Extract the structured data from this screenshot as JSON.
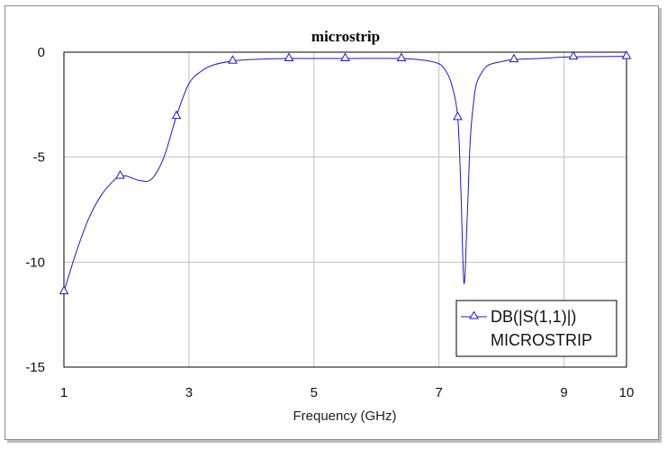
{
  "chart_data": {
    "type": "line",
    "title": "microstrip",
    "xlabel": "Frequency (GHz)",
    "ylabel": "",
    "xlim": [
      1,
      10
    ],
    "ylim": [
      -15,
      0
    ],
    "xticks": [
      1,
      3,
      5,
      7,
      9,
      10
    ],
    "yticks": [
      0,
      -5,
      -10,
      -15
    ],
    "xtick_labels": [
      "1",
      "3",
      "5",
      "7",
      "9",
      "10"
    ],
    "ytick_labels": [
      "0",
      "-5",
      "-10",
      "-15"
    ],
    "grid": true,
    "legend_position": "bottom-right",
    "legend": {
      "entry": "DB(|S(1,1)|)",
      "subtitle": "MICROSTRIP"
    },
    "series": [
      {
        "name": "DB(|S(1,1)|)",
        "color": "#1a1acc",
        "marker": "triangle",
        "x": [
          1.0,
          1.2,
          1.4,
          1.6,
          1.8,
          1.9,
          2.0,
          2.2,
          2.4,
          2.6,
          2.8,
          3.0,
          3.2,
          3.4,
          3.7,
          4.0,
          4.6,
          5.5,
          6.4,
          6.8,
          7.0,
          7.1,
          7.2,
          7.3,
          7.35,
          7.4,
          7.45,
          7.5,
          7.55,
          7.6,
          7.7,
          7.8,
          8.0,
          8.2,
          8.6,
          9.15,
          10.0
        ],
        "y": [
          -11.4,
          -9.5,
          -7.9,
          -6.8,
          -6.1,
          -5.9,
          -5.9,
          -6.1,
          -6.05,
          -5.0,
          -3.05,
          -1.5,
          -0.9,
          -0.6,
          -0.42,
          -0.35,
          -0.3,
          -0.3,
          -0.3,
          -0.4,
          -0.55,
          -0.85,
          -1.5,
          -3.1,
          -6.5,
          -11.0,
          -8.0,
          -4.2,
          -2.5,
          -1.5,
          -0.9,
          -0.6,
          -0.45,
          -0.35,
          -0.3,
          -0.22,
          -0.2
        ],
        "markers_x": [
          1.0,
          1.9,
          2.8,
          3.7,
          4.6,
          5.5,
          6.4,
          7.3,
          8.2,
          9.15,
          10.0
        ],
        "markers_y": [
          -11.4,
          -5.9,
          -3.05,
          -0.42,
          -0.3,
          -0.3,
          -0.3,
          -3.1,
          -0.35,
          -0.22,
          -0.2
        ]
      }
    ]
  }
}
